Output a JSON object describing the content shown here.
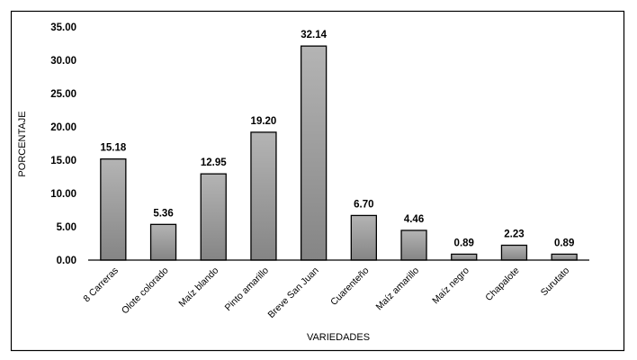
{
  "chart_data": {
    "type": "bar",
    "title": "",
    "xlabel": "VARIEDADES",
    "ylabel": "PORCENTAJE",
    "categories": [
      "8 Carreras",
      "Olote colorado",
      "Maíz blando",
      "Pinto amarillo",
      "Breve San Juan",
      "Cuarenteño",
      "Maíz amarillo",
      "Maíz negro",
      "Chapalote",
      "Surutato"
    ],
    "values": [
      15.18,
      5.36,
      12.95,
      19.2,
      32.14,
      6.7,
      4.46,
      0.89,
      2.23,
      0.89
    ],
    "data_labels": [
      "15.18",
      "5.36",
      "12.95",
      "19.20",
      "32.14",
      "6.70",
      "4.46",
      "0.89",
      "2.23",
      "0.89"
    ],
    "ylim": [
      0,
      35
    ],
    "yticks": [
      "0.00",
      "5.00",
      "10.00",
      "15.00",
      "20.00",
      "25.00",
      "30.00",
      "35.00"
    ],
    "grid": false,
    "legend": "none",
    "bar_color_top": "#b4b4b4",
    "bar_color_bottom": "#858585"
  }
}
